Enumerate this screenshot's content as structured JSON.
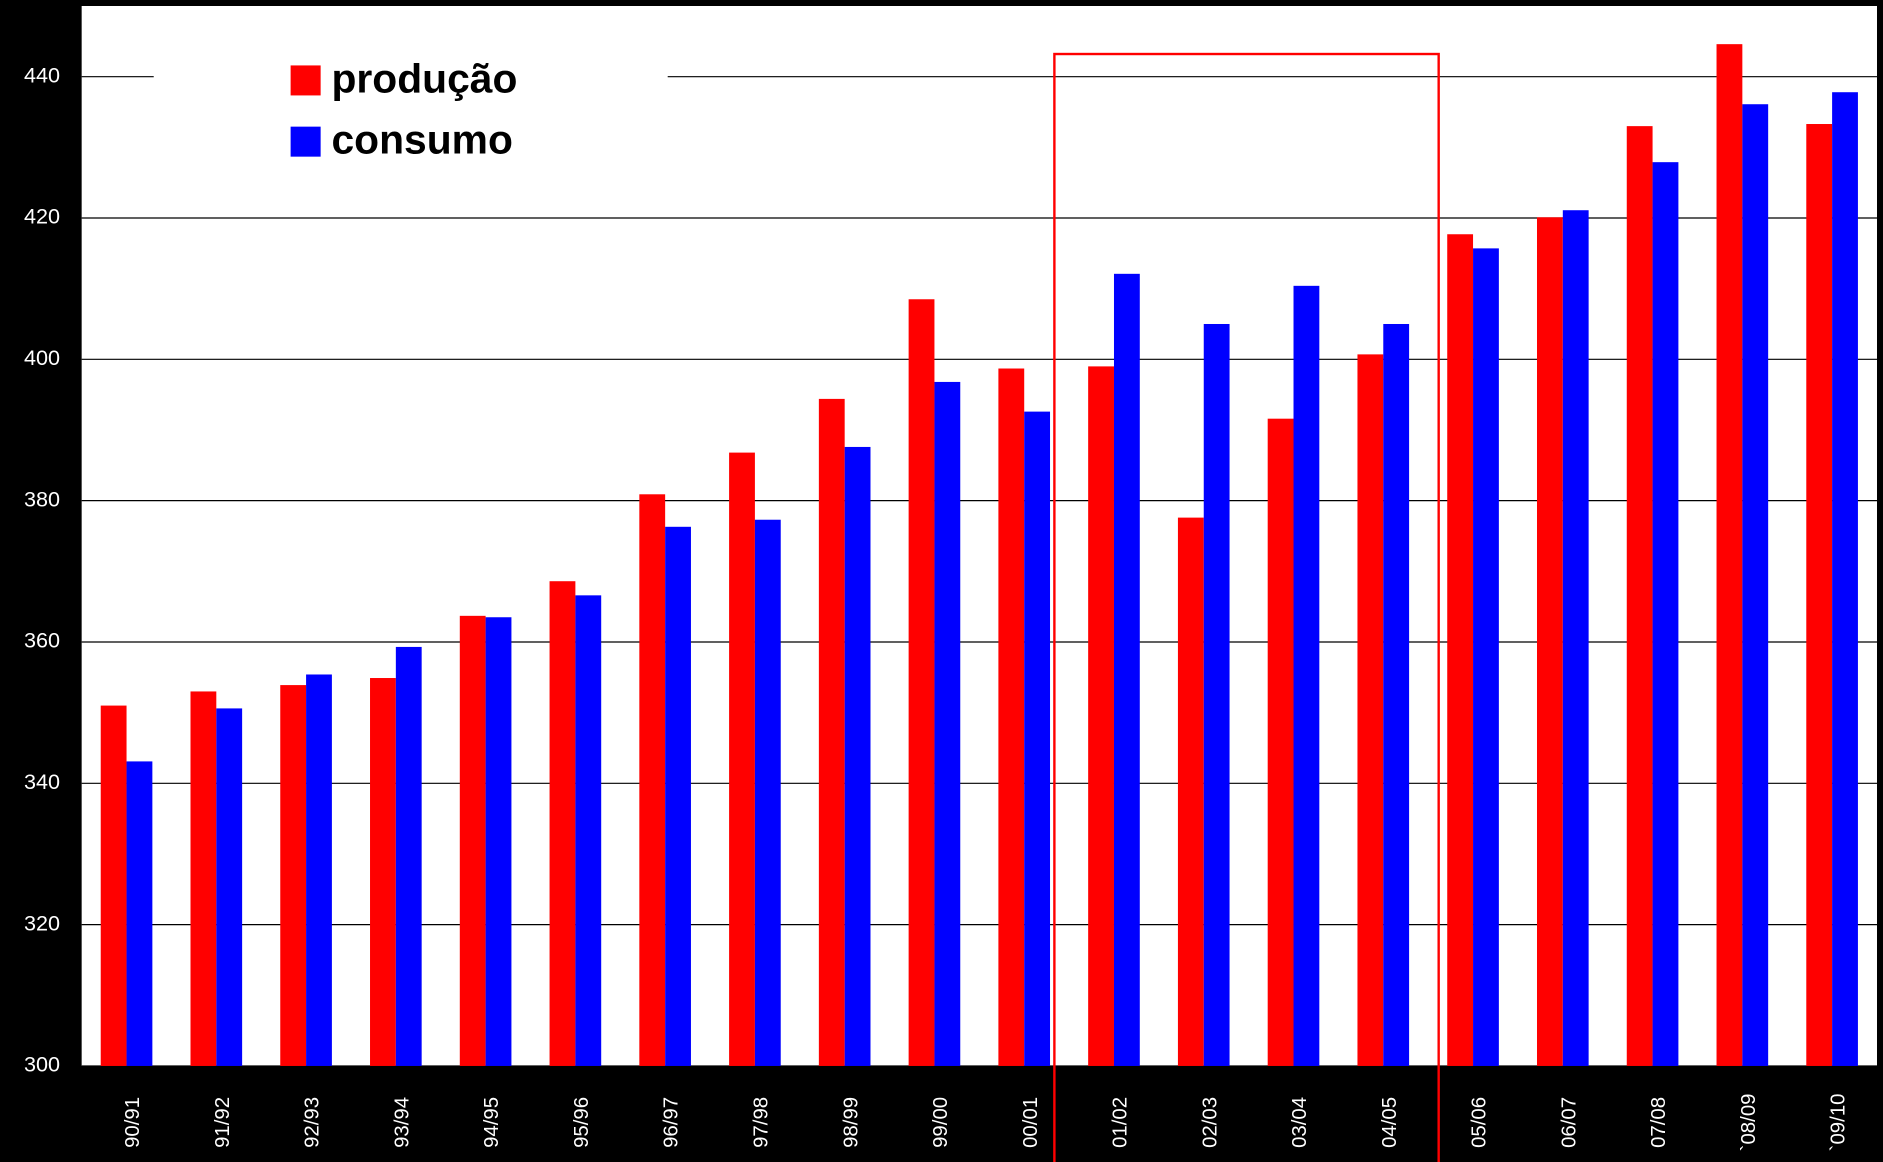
{
  "chart_data": {
    "type": "bar",
    "categories": [
      "90/91",
      "91/92",
      "92/93",
      "93/94",
      "94/95",
      "95/96",
      "96/97",
      "97/98",
      "98/99",
      "99/00",
      "00/01",
      "01/02",
      "02/03",
      "03/04",
      "04/05",
      "05/06",
      "06/07",
      "07/08",
      "`08/09",
      "`09/10"
    ],
    "series": [
      {
        "name": "produção",
        "color": "#ff0000",
        "values": [
          351,
          353,
          353.9,
          354.9,
          363.7,
          368.6,
          380.9,
          386.8,
          394.4,
          408.5,
          398.7,
          399,
          377.6,
          391.6,
          400.7,
          417.7,
          420.1,
          433,
          444.6,
          433.3
        ]
      },
      {
        "name": "consumo",
        "color": "#0000ff",
        "values": [
          343.1,
          350.6,
          355.4,
          359.3,
          363.5,
          366.6,
          376.3,
          377.3,
          387.6,
          396.8,
          392.6,
          412.1,
          405,
          410.4,
          405,
          415.7,
          421.1,
          427.9,
          436.1,
          437.8
        ]
      }
    ],
    "ylim": [
      300,
      450
    ],
    "yticks": [
      300,
      320,
      340,
      360,
      380,
      400,
      420,
      440
    ],
    "grid": true,
    "legend": "top-left"
  }
}
